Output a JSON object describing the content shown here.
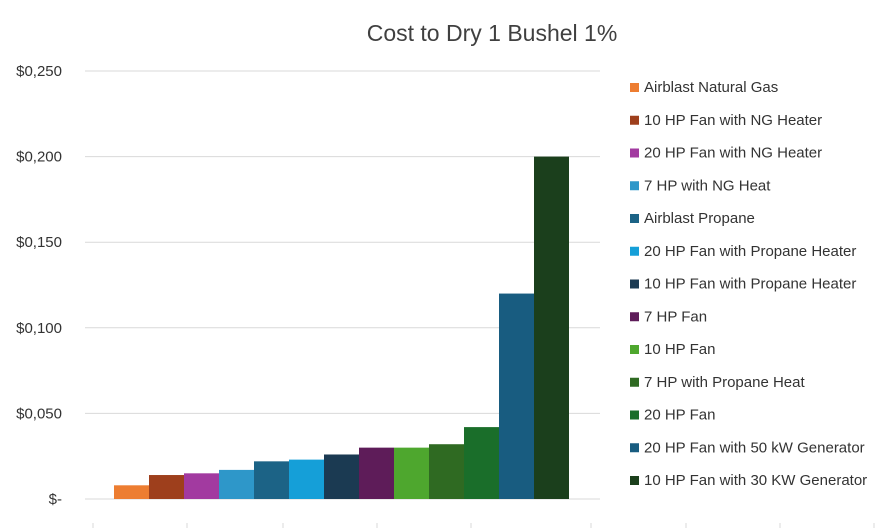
{
  "chart_data": {
    "type": "bar",
    "title": "Cost to Dry 1 Bushel 1%",
    "xlabel": "",
    "ylabel": "",
    "ylim": [
      0,
      0.25
    ],
    "yticks": [
      {
        "value": 0.25,
        "label": "$0,250"
      },
      {
        "value": 0.2,
        "label": "$0,200"
      },
      {
        "value": 0.15,
        "label": "$0,150"
      },
      {
        "value": 0.1,
        "label": "$0,100"
      },
      {
        "value": 0.05,
        "label": "$0,050"
      },
      {
        "value": 0,
        "label": "$-"
      }
    ],
    "grid": true,
    "legend_position": "right",
    "series": [
      {
        "name": "Airblast Natural Gas",
        "value": 0.008,
        "color": "#ED7D31"
      },
      {
        "name": "10 HP Fan with NG Heater",
        "value": 0.014,
        "color": "#9E3F1C"
      },
      {
        "name": "20 HP Fan with NG Heater",
        "value": 0.015,
        "color": "#A23AA0"
      },
      {
        "name": "7 HP with NG Heat",
        "value": 0.017,
        "color": "#2E97C9"
      },
      {
        "name": "Airblast Propane",
        "value": 0.022,
        "color": "#1C6386"
      },
      {
        "name": "20 HP Fan with Propane Heater",
        "value": 0.023,
        "color": "#159FD8"
      },
      {
        "name": "10 HP Fan with Propane Heater",
        "value": 0.026,
        "color": "#1B3A52"
      },
      {
        "name": "7 HP Fan",
        "value": 0.03,
        "color": "#5E1C59"
      },
      {
        "name": "10 HP Fan",
        "value": 0.03,
        "color": "#4EA72E"
      },
      {
        "name": "7 HP with Propane Heat",
        "value": 0.032,
        "color": "#2F6A22"
      },
      {
        "name": "20 HP Fan",
        "value": 0.042,
        "color": "#1A6E2A"
      },
      {
        "name": "20 HP Fan with 50 kW Generator",
        "value": 0.12,
        "color": "#185C80"
      },
      {
        "name": "10 HP Fan with 30 KW Generator",
        "value": 0.2,
        "color": "#1B3F1C"
      }
    ]
  }
}
